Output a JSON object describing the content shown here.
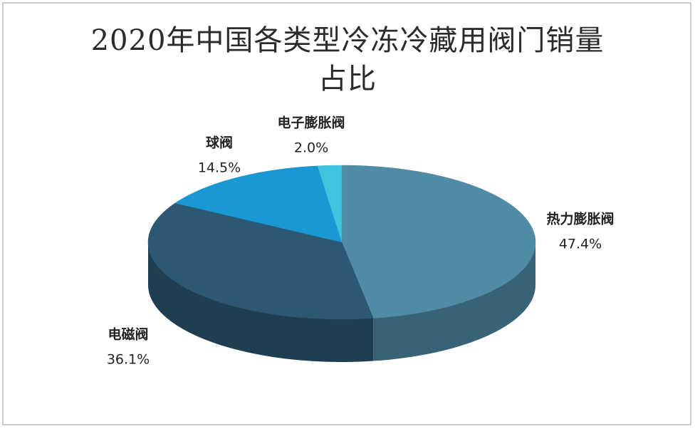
{
  "chart_data": {
    "type": "pie3d",
    "title": "2020年中国各类型冷冻冷藏用阀门销量占比",
    "categories": [
      "热力膨胀阀",
      "电磁阀",
      "球阀",
      "电子膨胀阀"
    ],
    "values": [
      47.4,
      36.1,
      14.5,
      2.0
    ],
    "value_labels": [
      "47.4%",
      "36.1%",
      "14.5%",
      "2.0%"
    ],
    "colors": [
      "#508ca8",
      "#2d5873",
      "#1a98d4",
      "#3fc3df"
    ]
  }
}
